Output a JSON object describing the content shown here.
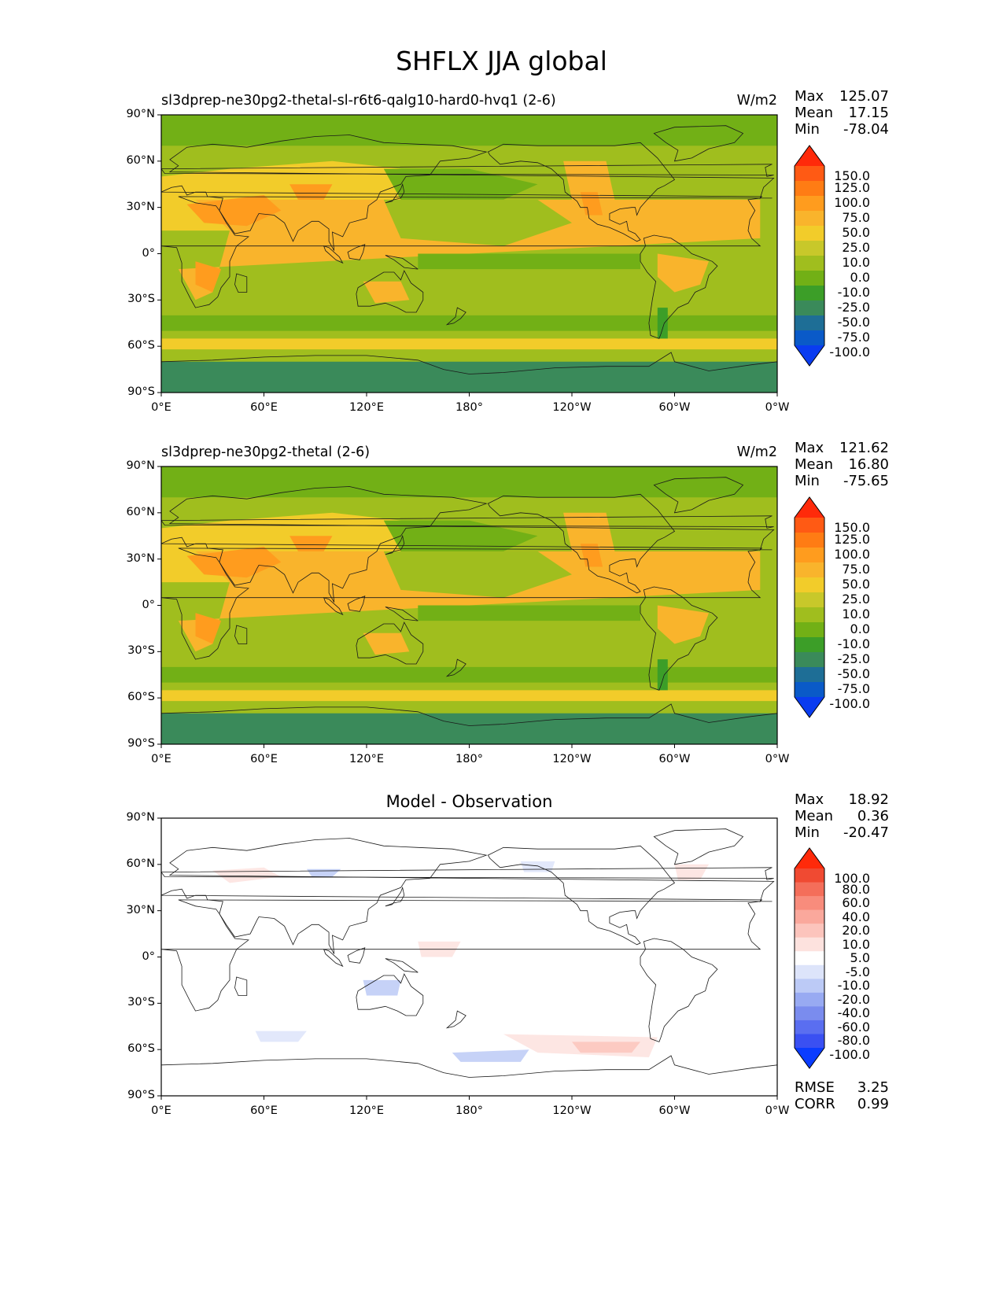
{
  "figure": {
    "title": "SHFLX JJA global"
  },
  "chart_data": [
    {
      "type": "heatmap",
      "title": "sl3dprep-ne30pg2-thetal-sl-r6t6-qalg10-hard0-hvq1 (2-6)",
      "units": "W/m2",
      "stats": {
        "max_label": "Max",
        "max": "125.07",
        "mean_label": "Mean",
        "mean": "17.15",
        "min_label": "Min",
        "min": "-78.04"
      },
      "colorbar": {
        "levels": [
          "150.0",
          "125.0",
          "100.0",
          "75.0",
          "50.0",
          "25.0",
          "10.0",
          "0.0",
          "-10.0",
          "-25.0",
          "-50.0",
          "-75.0",
          "-100.0"
        ],
        "colors": [
          "#ff2a0a",
          "#ff5a14",
          "#ff7c14",
          "#ff9c1e",
          "#f9b42c",
          "#f2cc2a",
          "#c8c82a",
          "#a0be1e",
          "#72b016",
          "#3c9e28",
          "#3a8a5a",
          "#1e6e96",
          "#0a5ac8",
          "#0a3cf0"
        ]
      },
      "xticks": [
        "0°E",
        "60°E",
        "120°E",
        "180°",
        "120°W",
        "60°W",
        "0°W"
      ],
      "yticks": [
        "90°N",
        "60°N",
        "30°N",
        "0°",
        "30°S",
        "60°S",
        "90°S"
      ]
    },
    {
      "type": "heatmap",
      "title": "sl3dprep-ne30pg2-thetal (2-6)",
      "units": "W/m2",
      "stats": {
        "max_label": "Max",
        "max": "121.62",
        "mean_label": "Mean",
        "mean": "16.80",
        "min_label": "Min",
        "min": "-75.65"
      },
      "colorbar": {
        "levels": [
          "150.0",
          "125.0",
          "100.0",
          "75.0",
          "50.0",
          "25.0",
          "10.0",
          "0.0",
          "-10.0",
          "-25.0",
          "-50.0",
          "-75.0",
          "-100.0"
        ],
        "colors": [
          "#ff2a0a",
          "#ff5a14",
          "#ff7c14",
          "#ff9c1e",
          "#f9b42c",
          "#f2cc2a",
          "#c8c82a",
          "#a0be1e",
          "#72b016",
          "#3c9e28",
          "#3a8a5a",
          "#1e6e96",
          "#0a5ac8",
          "#0a3cf0"
        ]
      },
      "xticks": [
        "0°E",
        "60°E",
        "120°E",
        "180°",
        "120°W",
        "60°W",
        "0°W"
      ],
      "yticks": [
        "90°N",
        "60°N",
        "30°N",
        "0°",
        "30°S",
        "60°S",
        "90°S"
      ]
    },
    {
      "type": "heatmap",
      "title": "Model - Observation",
      "stats": {
        "max_label": "Max",
        "max": "18.92",
        "mean_label": "Mean",
        "mean": "0.36",
        "min_label": "Min",
        "min": "-20.47"
      },
      "colorbar": {
        "levels": [
          "100.0",
          "80.0",
          "60.0",
          "40.0",
          "20.0",
          "10.0",
          "5.0",
          "-5.0",
          "-10.0",
          "-20.0",
          "-40.0",
          "-60.0",
          "-80.0",
          "-100.0"
        ],
        "colors": [
          "#ff2a0a",
          "#f04a32",
          "#f46e5a",
          "#f88c7c",
          "#faa89c",
          "#fcc4bc",
          "#fde2de",
          "#ffffff",
          "#dde4fa",
          "#bccaf6",
          "#98aaf2",
          "#7a8cee",
          "#5a6ef0",
          "#3a50f2",
          "#0a3cff"
        ]
      },
      "metrics": {
        "rmse_label": "RMSE",
        "rmse": "3.25",
        "corr_label": "CORR",
        "corr": "0.99"
      },
      "xticks": [
        "0°E",
        "60°E",
        "120°E",
        "180°",
        "120°W",
        "60°W",
        "0°W"
      ],
      "yticks": [
        "90°N",
        "60°N",
        "30°N",
        "0°",
        "30°S",
        "60°S",
        "90°S"
      ]
    }
  ]
}
